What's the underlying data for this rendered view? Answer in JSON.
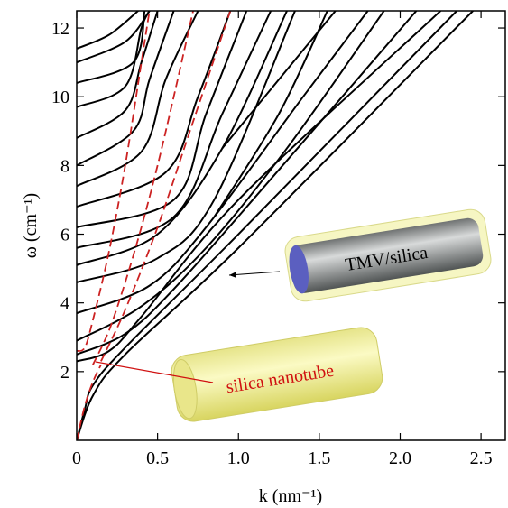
{
  "chart_data": {
    "type": "line",
    "xlabel": "k (nm⁻¹)",
    "ylabel": "ω (cm⁻¹)",
    "annotations": [
      "TMV/silica",
      "silica nanotube"
    ],
    "xlim": [
      0,
      2.65
    ],
    "ylim": [
      0,
      12.5
    ],
    "xticks": [
      0,
      0.5,
      {
        "value": 1,
        "label": "1.0"
      },
      1.5,
      {
        "value": 2,
        "label": "2.0"
      },
      2.5
    ],
    "yticks": [
      2,
      4,
      6,
      8,
      10,
      12
    ],
    "series": [
      {
        "color": "#000000",
        "x": [
          0,
          0.1,
          0.3,
          1,
          2.45
        ],
        "values": [
          0,
          1.3,
          2.5,
          5.6,
          12.5
        ]
      },
      {
        "color": "#000000",
        "x": [
          0,
          0.05,
          0.1,
          0.3,
          1,
          2.35
        ],
        "values": [
          0,
          0.9,
          1.6,
          2.7,
          6,
          12.5
        ]
      },
      {
        "color": "#000000",
        "x": [
          0,
          0.2,
          0.4,
          1,
          2.25
        ],
        "values": [
          2.3,
          2.6,
          3.6,
          7,
          12.5
        ]
      },
      {
        "color": "#000000",
        "x": [
          0,
          0.3,
          0.6,
          1.2,
          2.1
        ],
        "values": [
          2.5,
          3.1,
          4.4,
          7.6,
          12.5
        ]
      },
      {
        "color": "#000000",
        "x": [
          0,
          0.4,
          0.8,
          1.3,
          1.9
        ],
        "values": [
          2.9,
          3.9,
          5.6,
          8.5,
          12.5
        ]
      },
      {
        "color": "#000000",
        "x": [
          0,
          0.45,
          0.8,
          1.4,
          1.8
        ],
        "values": [
          3.7,
          4.5,
          6.2,
          10,
          12.5
        ]
      },
      {
        "color": "#000000",
        "x": [
          0,
          0.5,
          0.85,
          1.35
        ],
        "values": [
          4.6,
          5.3,
          7,
          12.5
        ]
      },
      {
        "color": "#000000",
        "x": [
          0,
          0.5,
          0.9,
          1.3
        ],
        "values": [
          5.1,
          6,
          8.5,
          12.5
        ]
      },
      {
        "color": "#000000",
        "x": [
          0,
          0.6,
          0.9,
          1.2
        ],
        "values": [
          5.6,
          6.5,
          9.5,
          12.5
        ]
      },
      {
        "color": "#000000",
        "x": [
          0,
          0.6,
          0.8,
          1.05
        ],
        "values": [
          6.2,
          7,
          9.5,
          12.5
        ]
      },
      {
        "color": "#000000",
        "x": [
          0,
          0.55,
          0.75,
          0.95
        ],
        "values": [
          6.8,
          7.8,
          10,
          12.5
        ]
      },
      {
        "color": "#000000",
        "x": [
          0,
          0.4,
          0.55,
          0.75
        ],
        "values": [
          7.4,
          8.4,
          10.5,
          12.5
        ]
      },
      {
        "color": "#000000",
        "x": [
          0,
          0.35,
          0.45,
          0.6
        ],
        "values": [
          8,
          9,
          10.5,
          12.5
        ]
      },
      {
        "color": "#000000",
        "x": [
          0,
          0.3,
          0.4,
          0.5
        ],
        "values": [
          8.8,
          9.6,
          11,
          12.5
        ]
      },
      {
        "color": "#000000",
        "x": [
          0,
          0.3,
          0.4,
          0.45
        ],
        "values": [
          9.7,
          10.3,
          12,
          12.5
        ]
      },
      {
        "color": "#000000",
        "x": [
          0,
          0.35,
          0.42
        ],
        "values": [
          10.4,
          11,
          12.5
        ]
      },
      {
        "color": "#000000",
        "x": [
          0,
          0.3,
          0.45
        ],
        "values": [
          11,
          11.6,
          12.5
        ]
      },
      {
        "color": "#000000",
        "x": [
          0,
          0.2,
          0.38
        ],
        "values": [
          11.4,
          11.8,
          12.5
        ]
      },
      {
        "color": "#000000",
        "x": [
          0.9,
          1.6
        ],
        "values": [
          8.5,
          12.5
        ]
      },
      {
        "color": "#000000",
        "x": [
          0.85,
          1.25,
          1.55
        ],
        "values": [
          6.5,
          9.5,
          12.5
        ]
      },
      {
        "color": "#cc2222",
        "dashed": true,
        "x": [
          0,
          0.05,
          0.1,
          0.15
        ],
        "values": [
          0,
          1,
          1.7,
          2.2
        ]
      },
      {
        "color": "#cc2222",
        "dashed": true,
        "x": [
          0,
          0.05,
          0.1,
          0.2,
          0.3,
          0.4,
          0.45
        ],
        "values": [
          2.6,
          2.7,
          3.5,
          5.5,
          8,
          11,
          12.5
        ]
      },
      {
        "color": "#cc2222",
        "dashed": true,
        "x": [
          0.1,
          0.2,
          0.3,
          0.4,
          0.5,
          0.6,
          0.72
        ],
        "values": [
          2.2,
          3.2,
          4.6,
          6.2,
          8,
          10,
          12.5
        ]
      },
      {
        "color": "#cc2222",
        "dashed": true,
        "x": [
          0.15,
          0.3,
          0.5,
          0.7,
          0.95
        ],
        "values": [
          2.3,
          3.8,
          6.2,
          9,
          12.5
        ]
      }
    ]
  }
}
